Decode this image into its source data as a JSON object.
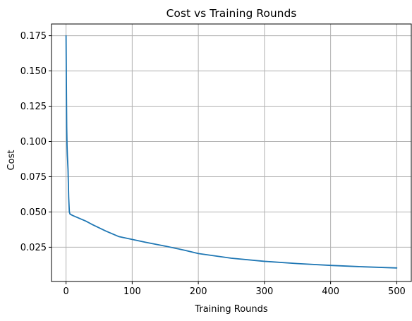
{
  "chart_data": {
    "type": "line",
    "title": "Cost vs Training Rounds",
    "xlabel": "Training Rounds",
    "ylabel": "Cost",
    "xlim": [
      -22,
      522
    ],
    "ylim": [
      0.0007,
      0.1833
    ],
    "grid": true,
    "xticks": [
      0,
      100,
      200,
      300,
      400,
      500
    ],
    "xtick_labels": [
      "0",
      "100",
      "200",
      "300",
      "400",
      "500"
    ],
    "yticks": [
      0.025,
      0.05,
      0.075,
      0.1,
      0.125,
      0.15,
      0.175
    ],
    "ytick_labels": [
      "0.025",
      "0.050",
      "0.075",
      "0.100",
      "0.125",
      "0.150",
      "0.175"
    ],
    "series": [
      {
        "color": "#1f77b4",
        "x": [
          0,
          0.5,
          1,
          1.5,
          2,
          3,
          4,
          5,
          6,
          8,
          10,
          20,
          30,
          40,
          60,
          80,
          100,
          120,
          150,
          180,
          200,
          250,
          300,
          350,
          400,
          450,
          500
        ],
        "y": [
          0.175,
          0.14,
          0.11,
          0.097,
          0.09,
          0.08,
          0.06,
          0.05,
          0.0485,
          0.048,
          0.0475,
          0.0455,
          0.0435,
          0.041,
          0.0365,
          0.0325,
          0.0305,
          0.0285,
          0.0258,
          0.0228,
          0.0205,
          0.0172,
          0.015,
          0.0134,
          0.0121,
          0.0111,
          0.0103
        ]
      }
    ]
  }
}
